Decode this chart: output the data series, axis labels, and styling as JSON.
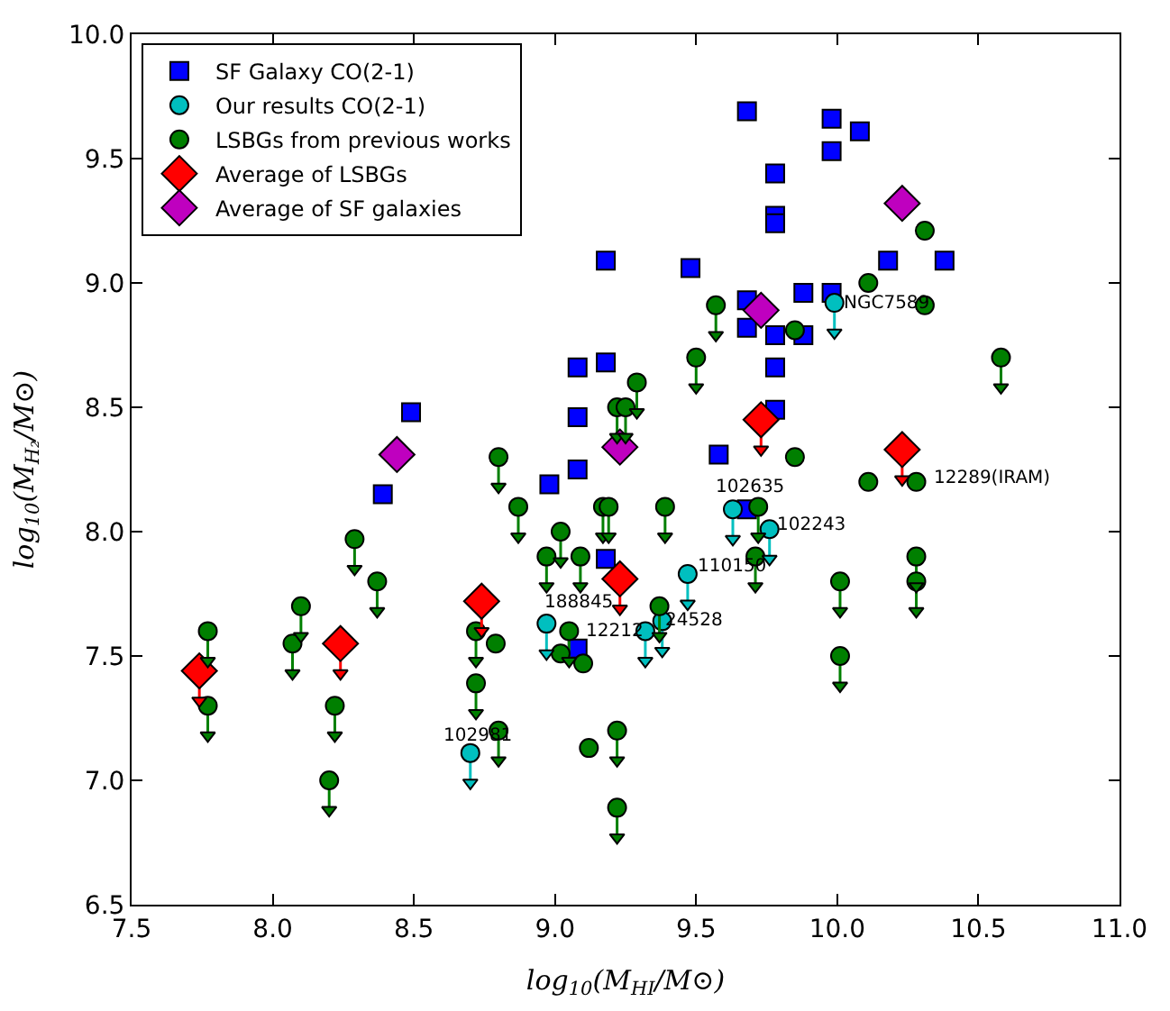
{
  "chart_data": {
    "type": "scatter",
    "xlabel": "log$_{10}$(M$_{HI}$/M⊙)",
    "ylabel": "log$_{10}$(M$_{H₂}$/M⊙)",
    "xlim": [
      7.5,
      11.0
    ],
    "xticks": [
      7.5,
      {
        "value": 8,
        "label": "8.0"
      },
      8.5,
      {
        "value": 9,
        "label": "9.0"
      },
      9.5,
      {
        "value": 10,
        "label": "10.0"
      },
      10.5,
      {
        "value": 11,
        "label": "11.0"
      }
    ],
    "ylim": [
      6.5,
      10.0
    ],
    "yticks": [
      6.5,
      {
        "value": 7,
        "label": "7.0"
      },
      7.5,
      {
        "value": 8,
        "label": "8.0"
      },
      8.5,
      {
        "value": 9,
        "label": "9.0"
      },
      9.5,
      {
        "value": 10,
        "label": "10.0"
      }
    ],
    "legend": "top left",
    "series": [
      {
        "name": "SF Galaxy CO(2-1)",
        "color": "#0000ff",
        "marker": "square",
        "x": [
          8.39,
          8.49,
          8.98,
          9.08,
          9.08,
          9.08,
          9.08,
          9.18,
          9.18,
          9.18,
          9.48,
          9.58,
          9.68,
          9.68,
          9.68,
          9.68,
          9.78,
          9.78,
          9.78,
          9.78,
          9.78,
          9.78,
          9.88,
          9.88,
          9.98,
          9.98,
          9.98,
          10.08,
          10.18,
          10.38
        ],
        "values": [
          8.15,
          8.48,
          8.19,
          8.25,
          8.46,
          8.66,
          7.53,
          9.09,
          8.68,
          7.89,
          9.06,
          8.31,
          9.69,
          8.93,
          8.82,
          8.09,
          9.44,
          9.27,
          9.24,
          8.79,
          8.66,
          8.49,
          8.96,
          8.79,
          9.66,
          9.53,
          8.96,
          9.61,
          9.09,
          9.09
        ]
      },
      {
        "name": "Our results CO(2-1)",
        "color": "#00bfbf",
        "marker": "circle",
        "x": [
          8.7,
          8.97,
          9.32,
          9.38,
          9.47,
          9.63,
          9.76,
          9.99
        ],
        "values": [
          7.11,
          7.63,
          7.6,
          7.64,
          7.83,
          8.09,
          8.01,
          8.92
        ],
        "errors": [
          [
            6.99,
            7.11
          ],
          [
            7.51,
            7.63
          ],
          [
            7.48,
            7.6
          ],
          [
            7.52,
            7.64
          ],
          [
            7.71,
            7.83
          ],
          [
            7.97,
            8.09
          ],
          [
            7.89,
            8.01
          ],
          [
            8.8,
            8.92
          ]
        ]
      },
      {
        "name": "LSBGs from previous works",
        "color": "#007f00",
        "marker": "circle",
        "x": [
          7.77,
          7.77,
          8.1,
          8.07,
          8.22,
          8.2,
          8.29,
          8.37,
          8.72,
          8.72,
          8.8,
          8.87,
          9.02,
          8.97,
          9.09,
          9.17,
          9.19,
          9.39,
          9.22,
          9.25,
          9.29,
          9.5,
          9.57,
          8.79,
          8.8,
          9.05,
          9.02,
          9.1,
          9.12,
          9.22,
          9.22,
          9.37,
          9.71,
          10.11,
          10.31,
          10.31,
          9.85,
          10.58,
          9.85,
          10.11,
          10.28,
          9.72,
          10.01,
          10.28,
          10.28,
          10.01
        ],
        "values": [
          7.6,
          7.3,
          7.7,
          7.55,
          7.3,
          7.0,
          7.97,
          7.8,
          7.6,
          7.39,
          8.3,
          8.1,
          8.0,
          7.9,
          7.9,
          8.1,
          8.1,
          8.1,
          8.5,
          8.5,
          8.6,
          8.7,
          8.91,
          7.55,
          7.2,
          7.6,
          7.51,
          7.47,
          7.13,
          7.2,
          6.89,
          7.7,
          7.9,
          9.0,
          9.21,
          8.91,
          8.81,
          8.7,
          8.3,
          8.2,
          8.2,
          8.1,
          7.8,
          7.9,
          7.8,
          7.5
        ],
        "errors": [
          [
            7.48,
            7.6
          ],
          [
            7.18,
            7.3
          ],
          [
            7.58,
            7.7
          ],
          [
            7.43,
            7.55
          ],
          [
            7.18,
            7.3
          ],
          [
            6.88,
            7.0
          ],
          [
            7.85,
            7.97
          ],
          [
            7.68,
            7.8
          ],
          [
            7.48,
            7.6
          ],
          [
            7.27,
            7.39
          ],
          [
            8.18,
            8.3
          ],
          [
            7.98,
            8.1
          ],
          [
            7.88,
            8.0
          ],
          [
            7.78,
            7.9
          ],
          [
            7.78,
            7.9
          ],
          [
            7.98,
            8.1
          ],
          [
            7.98,
            8.1
          ],
          [
            7.98,
            8.1
          ],
          [
            8.38,
            8.5
          ],
          [
            8.38,
            8.5
          ],
          [
            8.48,
            8.6
          ],
          [
            8.58,
            8.7
          ],
          [
            8.79,
            8.91
          ],
          null,
          [
            7.08,
            7.2
          ],
          [
            7.48,
            7.6
          ],
          null,
          null,
          null,
          [
            7.08,
            7.2
          ],
          [
            6.77,
            6.89
          ],
          [
            7.58,
            7.7
          ],
          [
            7.78,
            7.9
          ],
          null,
          null,
          null,
          null,
          [
            8.58,
            8.7
          ],
          null,
          null,
          null,
          [
            7.98,
            8.1
          ],
          [
            7.68,
            7.8
          ],
          [
            7.78,
            7.9
          ],
          [
            7.68,
            7.8
          ],
          [
            7.38,
            7.5
          ]
        ]
      },
      {
        "name": "Average of LSBGs",
        "color": "#ff0000",
        "marker": "diamond",
        "x": [
          7.74,
          8.24,
          8.74,
          9.23,
          9.73,
          10.23
        ],
        "values": [
          7.44,
          7.55,
          7.72,
          7.81,
          8.45,
          8.33
        ],
        "errors": [
          [
            7.32,
            7.44
          ],
          [
            7.43,
            7.55
          ],
          [
            7.6,
            7.72
          ],
          [
            7.69,
            7.81
          ],
          [
            8.33,
            8.45
          ],
          [
            8.21,
            8.33
          ]
        ]
      },
      {
        "name": "Average of SF galaxies",
        "color": "#bf00bf",
        "marker": "diamond",
        "x": [
          8.44,
          9.23,
          9.73,
          10.23
        ],
        "values": [
          8.31,
          8.34,
          8.89,
          9.32
        ]
      }
    ],
    "annotations": [
      {
        "text": "102981",
        "x": 8.7,
        "y": 7.11
      },
      {
        "text": "188845",
        "x": 8.97,
        "y": 7.63
      },
      {
        "text": "12212",
        "x": 9.32,
        "y": 7.6
      },
      {
        "text": "24528",
        "x": 9.38,
        "y": 7.64
      },
      {
        "text": "110150",
        "x": 9.47,
        "y": 7.83
      },
      {
        "text": "102635",
        "x": 9.63,
        "y": 8.09
      },
      {
        "text": "102243",
        "x": 9.76,
        "y": 8.01
      },
      {
        "text": "NGC7589",
        "x": 9.99,
        "y": 8.92
      },
      {
        "text": "12289(IRAM)",
        "x": 10.28,
        "y": 8.2
      }
    ]
  }
}
